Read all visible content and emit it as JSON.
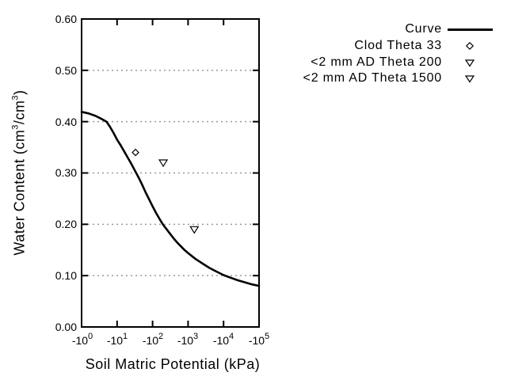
{
  "chart_data": {
    "type": "line",
    "title": "",
    "xlabel": "Soil Matric Potential (kPa)",
    "ylabel": "Water Content (cm3/cm3)",
    "ylabel_parts": {
      "p1": "Water Content (cm",
      "s1": "3",
      "p2": "/cm",
      "s2": "3",
      "p3": ")"
    },
    "x_scale": "negative-log10-kPa",
    "xlim_decades": [
      0,
      5
    ],
    "ylim": [
      0.0,
      0.6
    ],
    "grid": "horizontal-dotted",
    "grid_y": [
      0.1,
      0.2,
      0.3,
      0.4,
      0.5
    ],
    "xticks": [
      {
        "base": "-10",
        "exp": "0"
      },
      {
        "base": "-10",
        "exp": "1"
      },
      {
        "base": "-10",
        "exp": "2"
      },
      {
        "base": "-10",
        "exp": "3"
      },
      {
        "base": "-10",
        "exp": "4"
      },
      {
        "base": "-10",
        "exp": "5"
      }
    ],
    "yticks": [
      "0.60",
      "0.50",
      "0.40",
      "0.30",
      "0.20",
      "0.10",
      "0.00"
    ],
    "curve": {
      "name": "Curve",
      "points_log10kPa_theta": [
        [
          0.0,
          0.419
        ],
        [
          0.2,
          0.416
        ],
        [
          0.4,
          0.411
        ],
        [
          0.6,
          0.404
        ],
        [
          0.7,
          0.4
        ],
        [
          0.8,
          0.39
        ],
        [
          0.9,
          0.378
        ],
        [
          1.0,
          0.365
        ],
        [
          1.1,
          0.354
        ],
        [
          1.2,
          0.342
        ],
        [
          1.3,
          0.33
        ],
        [
          1.4,
          0.318
        ],
        [
          1.5,
          0.305
        ],
        [
          1.6,
          0.292
        ],
        [
          1.7,
          0.278
        ],
        [
          1.8,
          0.263
        ],
        [
          1.9,
          0.249
        ],
        [
          2.0,
          0.235
        ],
        [
          2.1,
          0.222
        ],
        [
          2.2,
          0.21
        ],
        [
          2.3,
          0.199
        ],
        [
          2.4,
          0.19
        ],
        [
          2.5,
          0.181
        ],
        [
          2.6,
          0.172
        ],
        [
          2.7,
          0.164
        ],
        [
          2.8,
          0.157
        ],
        [
          2.9,
          0.15
        ],
        [
          3.0,
          0.144
        ],
        [
          3.2,
          0.133
        ],
        [
          3.4,
          0.124
        ],
        [
          3.6,
          0.115
        ],
        [
          3.8,
          0.108
        ],
        [
          4.0,
          0.101
        ],
        [
          4.2,
          0.096
        ],
        [
          4.4,
          0.091
        ],
        [
          4.6,
          0.087
        ],
        [
          4.8,
          0.083
        ],
        [
          5.0,
          0.08
        ]
      ]
    },
    "scatter": [
      {
        "name": "Clod Theta 33",
        "marker": "diamond",
        "kPa": -33,
        "log10": 1.519,
        "theta": 0.34
      },
      {
        "name": "<2 mm AD Theta 200",
        "marker": "triangle-down",
        "kPa": -200,
        "log10": 2.301,
        "theta": 0.32
      },
      {
        "name": "<2 mm AD Theta 1500",
        "marker": "triangle-down",
        "kPa": -1500,
        "log10": 3.176,
        "theta": 0.19
      }
    ],
    "legend": {
      "position": "top-right-outside",
      "items": [
        {
          "label": "Curve",
          "marker": "line"
        },
        {
          "label": "Clod Theta 33",
          "marker": "diamond"
        },
        {
          "label": "<2 mm AD Theta 200",
          "marker": "triangle-down"
        },
        {
          "label": "<2 mm AD Theta 1500",
          "marker": "triangle-down"
        }
      ]
    },
    "colors": {
      "line": "#000000",
      "axis": "#000000",
      "grid": "#999999",
      "text": "#000000",
      "background": "#ffffff"
    }
  }
}
